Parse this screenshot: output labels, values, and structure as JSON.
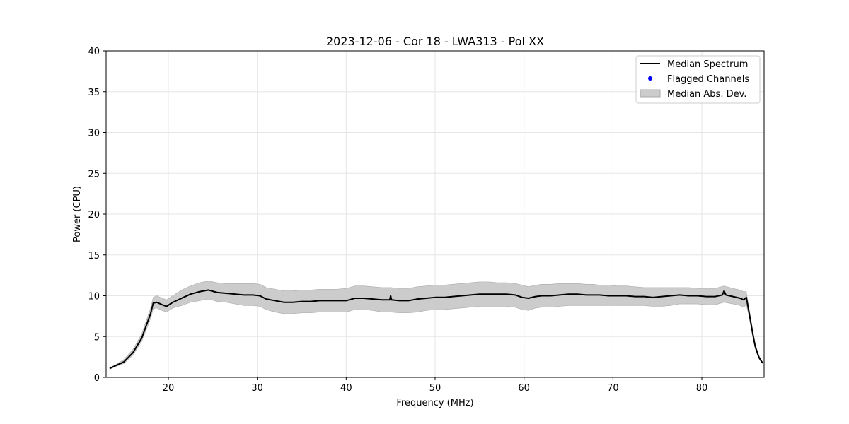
{
  "chart_data": {
    "type": "line",
    "title": "2023-12-06 - Cor 18 - LWA313 - Pol XX",
    "xlabel": "Frequency (MHz)",
    "ylabel": "Power (CPU)",
    "xlim": [
      13,
      87
    ],
    "ylim": [
      0,
      40
    ],
    "xticks": [
      20,
      30,
      40,
      50,
      60,
      70,
      80
    ],
    "xtick_labels": [
      "20",
      "30",
      "40",
      "50",
      "60",
      "70",
      "80"
    ],
    "yticks": [
      0,
      5,
      10,
      15,
      20,
      25,
      30,
      35,
      40
    ],
    "ytick_labels": [
      "0",
      "5",
      "10",
      "15",
      "20",
      "25",
      "30",
      "35",
      "40"
    ],
    "grid": true,
    "legend_position": "upper right",
    "legend": [
      "Median Spectrum",
      "Flagged Channels",
      "Median Abs. Dev."
    ],
    "colors": {
      "median_line": "#000000",
      "flagged": "#0000ff",
      "mad_band": "#cccccc",
      "mad_band_edge": "#aaaaaa",
      "grid": "#e6e6e6"
    },
    "series": [
      {
        "name": "Median Spectrum",
        "kind": "line",
        "x": [
          13.4,
          14.0,
          15.0,
          16.0,
          17.0,
          17.5,
          18.0,
          18.3,
          18.7,
          19.3,
          19.8,
          20.5,
          21.5,
          22.5,
          23.5,
          24.5,
          25.5,
          26.5,
          27.5,
          28.5,
          29.5,
          30.3,
          31.0,
          32.0,
          33.0,
          34.0,
          35.0,
          36.0,
          37.0,
          38.0,
          39.0,
          40.0,
          41.0,
          42.0,
          43.0,
          44.0,
          44.9,
          45.0,
          45.1,
          46.0,
          47.0,
          48.0,
          49.0,
          50.0,
          51.0,
          52.0,
          53.0,
          54.0,
          55.0,
          56.0,
          57.0,
          58.0,
          59.0,
          59.8,
          60.5,
          61.3,
          62.0,
          63.0,
          64.0,
          65.0,
          66.0,
          67.0,
          67.8,
          68.5,
          69.5,
          70.5,
          71.5,
          72.5,
          73.5,
          74.5,
          75.5,
          76.5,
          77.5,
          78.5,
          79.5,
          80.5,
          81.5,
          82.3,
          82.5,
          82.7,
          83.5,
          84.3,
          84.7,
          85.0,
          85.3,
          85.7,
          86.0,
          86.4,
          86.8
        ],
        "y": [
          1.1,
          1.4,
          1.9,
          3.0,
          4.8,
          6.3,
          7.8,
          9.1,
          9.2,
          8.9,
          8.7,
          9.2,
          9.7,
          10.2,
          10.5,
          10.7,
          10.4,
          10.3,
          10.2,
          10.1,
          10.1,
          10.0,
          9.6,
          9.4,
          9.2,
          9.2,
          9.3,
          9.3,
          9.4,
          9.4,
          9.4,
          9.4,
          9.7,
          9.7,
          9.6,
          9.5,
          9.5,
          10.0,
          9.5,
          9.4,
          9.4,
          9.6,
          9.7,
          9.8,
          9.8,
          9.9,
          10.0,
          10.1,
          10.2,
          10.2,
          10.2,
          10.2,
          10.1,
          9.8,
          9.7,
          9.9,
          10.0,
          10.0,
          10.1,
          10.2,
          10.2,
          10.1,
          10.1,
          10.1,
          10.0,
          10.0,
          10.0,
          9.9,
          9.9,
          9.8,
          9.9,
          10.0,
          10.1,
          10.0,
          10.0,
          9.9,
          9.9,
          10.1,
          10.6,
          10.1,
          9.9,
          9.7,
          9.5,
          9.8,
          8.0,
          5.5,
          3.8,
          2.5,
          1.8
        ]
      },
      {
        "name": "Flagged Channels",
        "kind": "scatter",
        "x": [],
        "y": []
      },
      {
        "name": "Median Abs. Dev.",
        "kind": "band",
        "x": [
          13.4,
          14.0,
          15.0,
          16.0,
          17.0,
          17.5,
          18.0,
          18.3,
          18.7,
          19.3,
          19.8,
          20.5,
          21.5,
          22.5,
          23.5,
          24.5,
          25.5,
          26.5,
          27.5,
          28.5,
          29.5,
          30.3,
          31.0,
          32.0,
          33.0,
          34.0,
          35.0,
          36.0,
          37.0,
          38.0,
          39.0,
          40.0,
          41.0,
          42.0,
          43.0,
          44.0,
          45.0,
          46.0,
          47.0,
          48.0,
          49.0,
          50.0,
          51.0,
          52.0,
          53.0,
          54.0,
          55.0,
          56.0,
          57.0,
          58.0,
          59.0,
          59.8,
          60.5,
          61.3,
          62.0,
          63.0,
          64.0,
          65.0,
          66.0,
          67.0,
          67.8,
          68.5,
          69.5,
          70.5,
          71.5,
          72.5,
          73.5,
          74.5,
          75.5,
          76.5,
          77.5,
          78.5,
          79.5,
          80.5,
          81.5,
          82.5,
          83.5,
          84.3,
          84.7,
          85.0,
          85.3,
          85.7,
          86.0,
          86.4,
          86.8
        ],
        "upper": [
          1.2,
          1.5,
          2.2,
          3.4,
          5.3,
          6.9,
          8.5,
          9.8,
          10.0,
          9.7,
          9.5,
          10.0,
          10.7,
          11.2,
          11.6,
          11.8,
          11.6,
          11.5,
          11.5,
          11.5,
          11.5,
          11.4,
          11.0,
          10.8,
          10.6,
          10.6,
          10.7,
          10.7,
          10.8,
          10.8,
          10.8,
          10.9,
          11.2,
          11.2,
          11.1,
          11.0,
          11.0,
          10.9,
          10.9,
          11.1,
          11.2,
          11.3,
          11.3,
          11.4,
          11.5,
          11.6,
          11.7,
          11.7,
          11.6,
          11.6,
          11.5,
          11.3,
          11.1,
          11.3,
          11.4,
          11.4,
          11.5,
          11.5,
          11.5,
          11.4,
          11.4,
          11.3,
          11.3,
          11.2,
          11.2,
          11.1,
          11.0,
          11.0,
          11.0,
          11.0,
          11.0,
          11.0,
          10.9,
          10.9,
          10.9,
          11.2,
          10.9,
          10.7,
          10.5,
          10.5,
          8.5,
          5.9,
          4.1,
          2.7,
          1.9
        ],
        "lower": [
          1.0,
          1.3,
          1.7,
          2.7,
          4.4,
          5.8,
          7.2,
          8.4,
          8.5,
          8.2,
          8.0,
          8.5,
          8.8,
          9.2,
          9.4,
          9.6,
          9.3,
          9.2,
          9.0,
          8.8,
          8.8,
          8.7,
          8.3,
          8.0,
          7.8,
          7.8,
          7.9,
          7.9,
          8.0,
          8.0,
          8.0,
          8.0,
          8.3,
          8.3,
          8.2,
          8.0,
          8.0,
          7.9,
          7.9,
          8.0,
          8.2,
          8.3,
          8.3,
          8.4,
          8.5,
          8.6,
          8.7,
          8.7,
          8.7,
          8.7,
          8.6,
          8.3,
          8.2,
          8.5,
          8.6,
          8.6,
          8.7,
          8.8,
          8.8,
          8.8,
          8.8,
          8.8,
          8.8,
          8.8,
          8.8,
          8.8,
          8.8,
          8.7,
          8.7,
          8.8,
          9.0,
          9.0,
          9.0,
          8.9,
          8.9,
          9.2,
          9.0,
          8.8,
          8.6,
          8.9,
          7.5,
          5.1,
          3.5,
          2.3,
          1.7
        ]
      }
    ]
  }
}
